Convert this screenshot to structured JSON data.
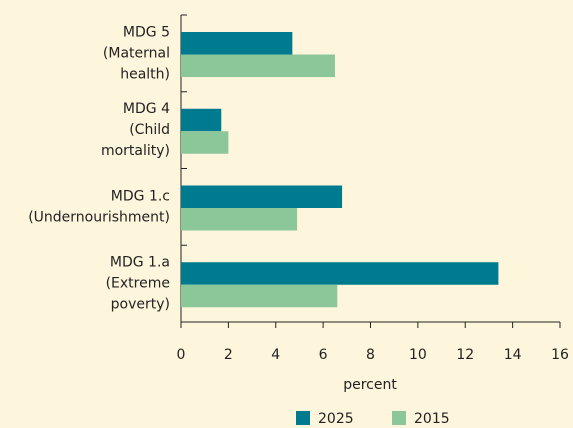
{
  "chart_data": {
    "type": "hbar",
    "categories": [
      [
        "MDG 5",
        "(Maternal",
        "health)"
      ],
      [
        "MDG 4",
        "(Child",
        "mortality)"
      ],
      [
        "MDG 1.c",
        "(Undernourishment)"
      ],
      [
        "MDG 1.a",
        "(Extreme",
        "poverty)"
      ]
    ],
    "series": [
      {
        "name": "2025",
        "color": "#007a8f",
        "values": [
          4.7,
          1.7,
          6.8,
          13.4
        ]
      },
      {
        "name": "2015",
        "color": "#8cc79a",
        "values": [
          6.5,
          2.0,
          4.9,
          6.6
        ]
      }
    ],
    "xlabel": "percent",
    "xlim": [
      0,
      16
    ],
    "xticks": [
      0,
      2,
      4,
      6,
      8,
      10,
      12,
      14,
      16
    ]
  }
}
